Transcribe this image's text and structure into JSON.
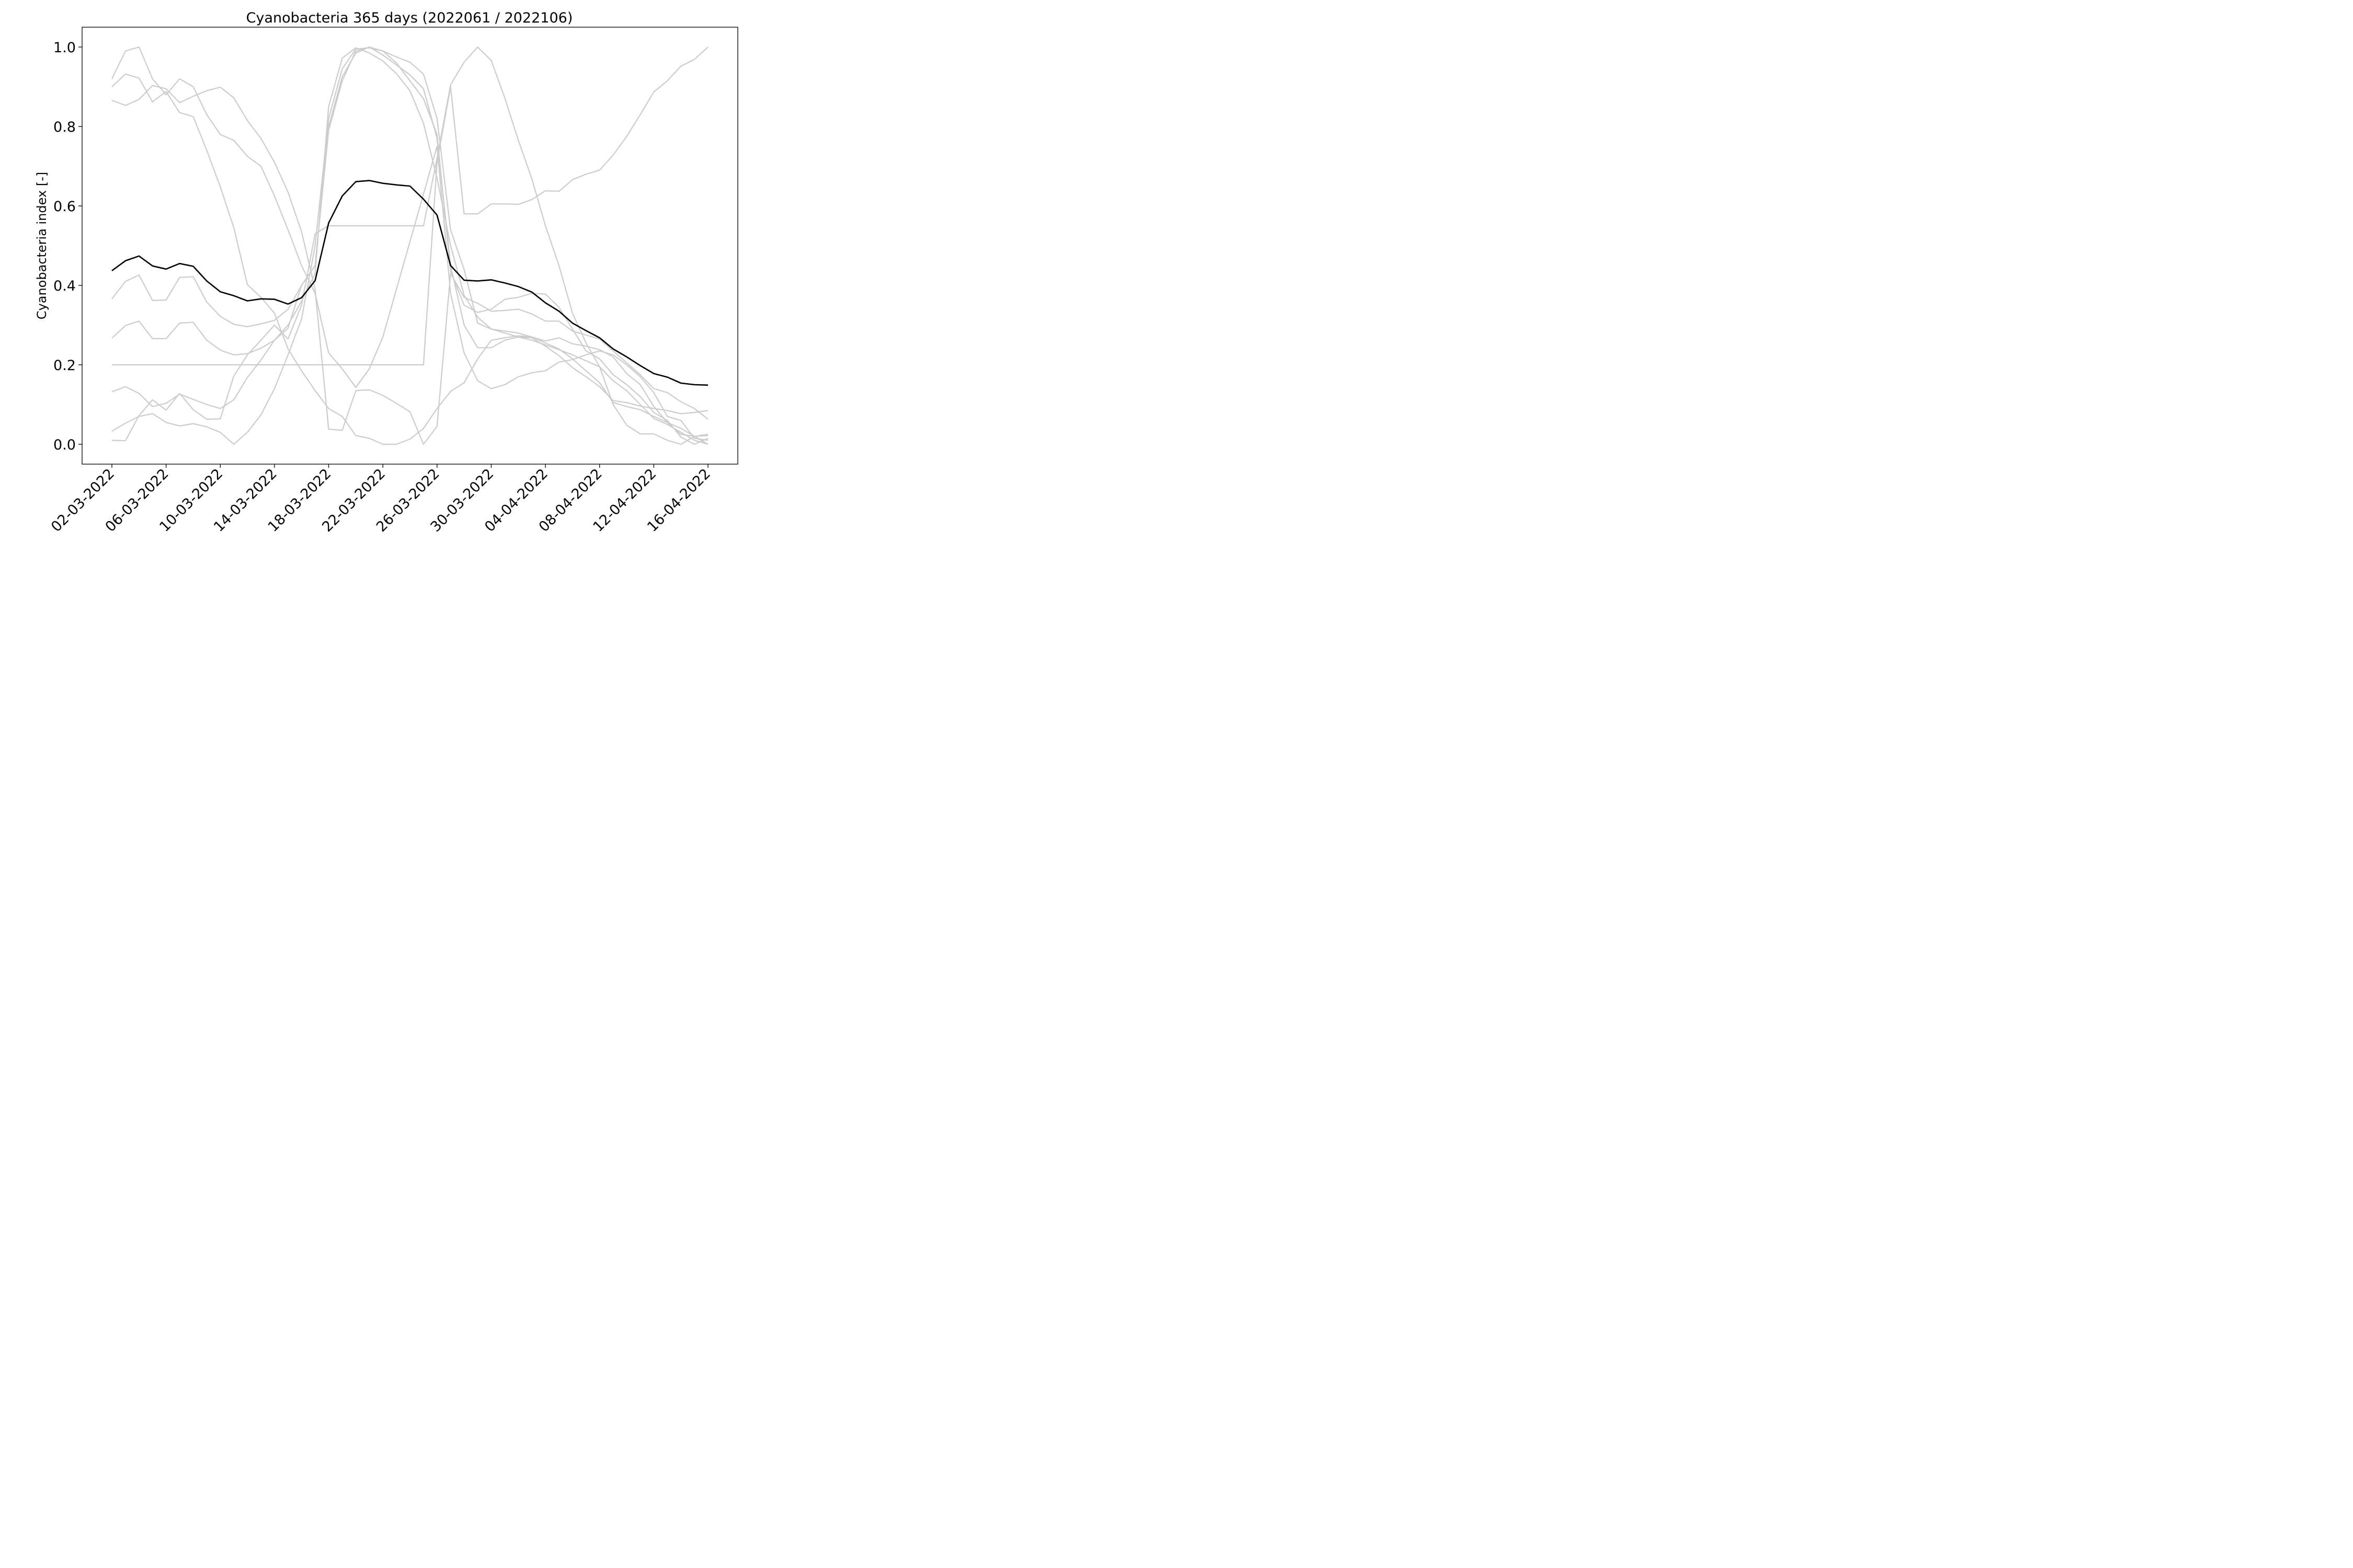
{
  "chart_data": {
    "type": "line",
    "title": "Cyanobacteria 365 days (2022061 / 2022106)",
    "xlabel": "",
    "ylabel": "Cyanobacteria index [-]",
    "ylim": [
      -0.05,
      1.05
    ],
    "yticks": [
      "0.0",
      "0.2",
      "0.4",
      "0.6",
      "0.8",
      "1.0"
    ],
    "xticks": [
      "02-03-2022",
      "06-03-2022",
      "10-03-2022",
      "14-03-2022",
      "18-03-2022",
      "22-03-2022",
      "26-03-2022",
      "30-03-2022",
      "04-04-2022",
      "08-04-2022",
      "12-04-2022",
      "16-04-2022"
    ],
    "x_tick_positions": [
      0,
      4,
      8,
      12,
      16,
      20,
      24,
      28,
      32,
      36,
      40,
      44
    ],
    "x_range": [
      -2.2,
      46.2
    ],
    "grid": false,
    "colors": {
      "background_series": "#cccccc",
      "mean_series": "#000000"
    },
    "series": [
      {
        "values": [
          0.92,
          0.99,
          1.0,
          0.92,
          0.88,
          0.92,
          0.9,
          0.83,
          0.78,
          0.765,
          0.725,
          0.7,
          0.625,
          0.54,
          0.45,
          0.38,
          0.23,
          0.19,
          0.143,
          0.19,
          0.27,
          0.39,
          0.51,
          0.63,
          0.75,
          0.38,
          0.23,
          0.16,
          0.14,
          0.15,
          0.17,
          0.18,
          0.185,
          0.207,
          0.213,
          0.225,
          0.235,
          0.225,
          0.2,
          0.17,
          0.13,
          0.07,
          0.06,
          0.015,
          0.01
        ]
      },
      {
        "values": [
          0.9,
          0.932,
          0.922,
          0.862,
          0.888,
          0.835,
          0.825,
          0.74,
          0.648,
          0.545,
          0.402,
          0.37,
          0.33,
          0.24,
          0.185,
          0.135,
          0.09,
          0.07,
          0.022,
          0.015,
          0.0,
          0.0,
          0.013,
          0.04,
          0.09,
          0.133,
          0.155,
          0.215,
          0.262,
          0.268,
          0.273,
          0.27,
          0.26,
          0.268,
          0.253,
          0.247,
          0.238,
          0.22,
          0.178,
          0.15,
          0.095,
          0.055,
          0.04,
          0.02,
          0.0
        ]
      },
      {
        "values": [
          0.866,
          0.853,
          0.868,
          0.903,
          0.895,
          0.86,
          0.876,
          0.89,
          0.899,
          0.872,
          0.815,
          0.77,
          0.71,
          0.635,
          0.535,
          0.39,
          0.038,
          0.035,
          0.135,
          0.137,
          0.123,
          0.103,
          0.082,
          0.0,
          0.045,
          0.43,
          0.37,
          0.355,
          0.335,
          0.337,
          0.34,
          0.328,
          0.31,
          0.31,
          0.285,
          0.275,
          0.265,
          0.235,
          0.205,
          0.175,
          0.14,
          0.13,
          0.107,
          0.09,
          0.063
        ]
      },
      {
        "values": [
          0.366,
          0.41,
          0.426,
          0.362,
          0.363,
          0.42,
          0.422,
          0.358,
          0.322,
          0.302,
          0.296,
          0.303,
          0.312,
          0.34,
          0.4,
          0.45,
          0.79,
          0.915,
          0.99,
          1.0,
          0.99,
          0.96,
          0.915,
          0.87,
          0.78,
          0.435,
          0.35,
          0.332,
          0.34,
          0.365,
          0.37,
          0.38,
          0.378,
          0.345,
          0.29,
          0.235,
          0.215,
          0.175,
          0.15,
          0.12,
          0.08,
          0.06,
          0.018,
          0.0,
          0.015
        ]
      },
      {
        "values": [
          0.267,
          0.299,
          0.31,
          0.266,
          0.266,
          0.305,
          0.307,
          0.262,
          0.237,
          0.225,
          0.228,
          0.242,
          0.262,
          0.292,
          0.4,
          0.45,
          0.8,
          0.925,
          0.985,
          1.0,
          0.98,
          0.955,
          0.93,
          0.895,
          0.77,
          0.45,
          0.3,
          0.243,
          0.243,
          0.262,
          0.27,
          0.268,
          0.247,
          0.223,
          0.193,
          0.17,
          0.145,
          0.11,
          0.105,
          0.096,
          0.09,
          0.085,
          0.077,
          0.08,
          0.085
        ]
      },
      {
        "values": [
          0.132,
          0.145,
          0.128,
          0.095,
          0.103,
          0.126,
          0.113,
          0.1,
          0.09,
          0.112,
          0.168,
          0.212,
          0.262,
          0.3,
          0.36,
          0.43,
          0.85,
          0.972,
          0.998,
          0.985,
          0.965,
          0.933,
          0.89,
          0.808,
          0.67,
          0.5,
          0.375,
          0.32,
          0.29,
          0.28,
          0.27,
          0.262,
          0.25,
          0.238,
          0.225,
          0.21,
          0.195,
          0.16,
          0.135,
          0.1,
          0.065,
          0.05,
          0.03,
          0.01,
          0.0
        ]
      },
      {
        "values": [
          0.033,
          0.053,
          0.07,
          0.077,
          0.055,
          0.046,
          0.052,
          0.044,
          0.03,
          0.0,
          0.03,
          0.074,
          0.14,
          0.225,
          0.315,
          0.5,
          0.82,
          0.945,
          0.995,
          0.998,
          0.99,
          0.975,
          0.962,
          0.932,
          0.82,
          0.54,
          0.44,
          0.305,
          0.29,
          0.285,
          0.28,
          0.27,
          0.255,
          0.24,
          0.215,
          0.185,
          0.155,
          0.105,
          0.095,
          0.087,
          0.07,
          0.055,
          0.025,
          0.02,
          0.022
        ]
      },
      {
        "values": [
          0.01,
          0.009,
          0.072,
          0.112,
          0.086,
          0.128,
          0.087,
          0.063,
          0.064,
          0.172,
          0.225,
          0.262,
          0.3,
          0.265,
          0.35,
          0.53,
          0.55,
          0.55,
          0.55,
          0.55,
          0.55,
          0.55,
          0.55,
          0.55,
          0.72,
          0.905,
          0.962,
          1.0,
          0.966,
          0.872,
          0.765,
          0.668,
          0.55,
          0.45,
          0.33,
          0.255,
          0.195,
          0.1,
          0.048,
          0.026,
          0.026,
          0.01,
          0.0,
          0.02,
          0.025
        ]
      },
      {
        "values": [
          0.2,
          0.2,
          0.2,
          0.2,
          0.2,
          0.2,
          0.2,
          0.2,
          0.2,
          0.2,
          0.2,
          0.2,
          0.2,
          0.2,
          0.2,
          0.2,
          0.2,
          0.2,
          0.2,
          0.2,
          0.2,
          0.2,
          0.2,
          0.2,
          0.71,
          0.9,
          0.58,
          0.58,
          0.605,
          0.605,
          0.604,
          0.616,
          0.638,
          0.637,
          0.666,
          0.68,
          0.69,
          0.728,
          0.775,
          0.83,
          0.887,
          0.915,
          0.952,
          0.969,
          1.0
        ]
      },
      {
        "name": "",
        "mean": true,
        "values": [
          0.437,
          0.462,
          0.474,
          0.449,
          0.441,
          0.455,
          0.448,
          0.411,
          0.384,
          0.374,
          0.361,
          0.366,
          0.365,
          0.353,
          0.369,
          0.412,
          0.557,
          0.625,
          0.661,
          0.664,
          0.657,
          0.653,
          0.65,
          0.617,
          0.577,
          0.45,
          0.413,
          0.411,
          0.414,
          0.406,
          0.397,
          0.383,
          0.356,
          0.335,
          0.305,
          0.286,
          0.268,
          0.24,
          0.22,
          0.198,
          0.178,
          0.169,
          0.154,
          0.15,
          0.149
        ]
      }
    ]
  }
}
